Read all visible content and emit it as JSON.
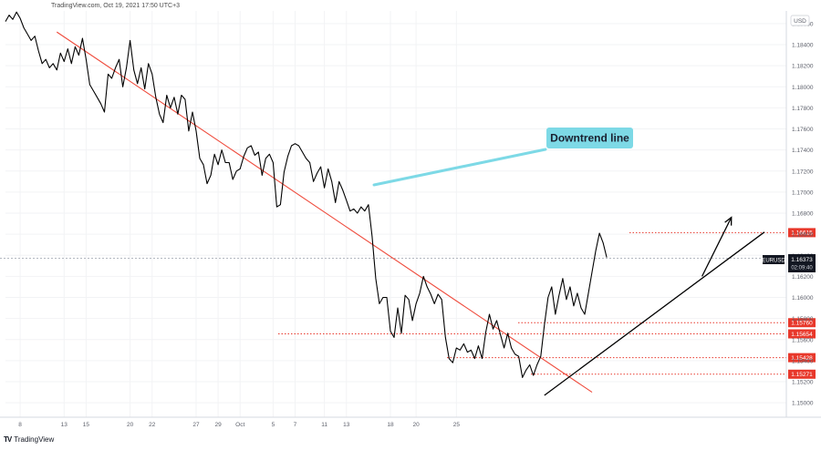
{
  "header": {
    "credit": "TradingView.com, Oct 19, 2021 17:50 UTC+3"
  },
  "footer": {
    "logo_mark": "TV",
    "logo_text": "TradingView"
  },
  "axis": {
    "currency": "USD"
  },
  "annotation": {
    "label": "Downtrend line",
    "label_bg": "#7dd9e6"
  },
  "colors": {
    "price": "#000000",
    "downtrend": "#ef4b3c",
    "level_line": "#e83a2e",
    "level_tag": "#e8382b",
    "current_tag": "#131722",
    "grid": "#f2f3f5"
  },
  "chart_data": {
    "type": "line",
    "symbol": "EURUSD",
    "ylim": [
      1.1488,
      1.1872
    ],
    "y_ticks": [
      "1.18600",
      "1.18400",
      "1.18200",
      "1.18000",
      "1.17800",
      "1.17600",
      "1.17400",
      "1.17200",
      "1.17000",
      "1.16800",
      "1.16600",
      "1.16400",
      "1.16200",
      "1.16000",
      "1.15800",
      "1.15600",
      "1.15400",
      "1.15200",
      "1.15000"
    ],
    "x_ticks": [
      "8",
      "13",
      "15",
      "20",
      "22",
      "27",
      "29",
      "Oct",
      "5",
      "7",
      "11",
      "13",
      "18",
      "20",
      "25"
    ],
    "x_tick_index": [
      4,
      16,
      22,
      34,
      40,
      52,
      58,
      64,
      73,
      79,
      87,
      93,
      105,
      112,
      123
    ],
    "price_series": [
      1.1862,
      1.1868,
      1.1864,
      1.1871,
      1.1865,
      1.1856,
      1.185,
      1.1844,
      1.1848,
      1.1834,
      1.1822,
      1.1826,
      1.1818,
      1.1822,
      1.1816,
      1.1832,
      1.1824,
      1.1836,
      1.1822,
      1.1838,
      1.183,
      1.1846,
      1.1826,
      1.1802,
      1.1796,
      1.179,
      1.1784,
      1.1776,
      1.1812,
      1.1808,
      1.1818,
      1.1826,
      1.18,
      1.1818,
      1.1844,
      1.1816,
      1.1803,
      1.1818,
      1.1798,
      1.1822,
      1.1812,
      1.179,
      1.1774,
      1.1766,
      1.1792,
      1.178,
      1.179,
      1.1774,
      1.1792,
      1.1788,
      1.1758,
      1.1776,
      1.1758,
      1.1732,
      1.1726,
      1.1708,
      1.1716,
      1.1736,
      1.1726,
      1.174,
      1.1728,
      1.1728,
      1.1712,
      1.172,
      1.1722,
      1.1734,
      1.1742,
      1.1744,
      1.1735,
      1.1738,
      1.1716,
      1.1732,
      1.1736,
      1.1728,
      1.1686,
      1.1688,
      1.1719,
      1.1734,
      1.1744,
      1.1746,
      1.1744,
      1.1738,
      1.1732,
      1.1728,
      1.171,
      1.1718,
      1.1724,
      1.1704,
      1.1722,
      1.171,
      1.169,
      1.171,
      1.1702,
      1.1692,
      1.1682,
      1.1684,
      1.168,
      1.1686,
      1.1682,
      1.1688,
      1.1658,
      1.1618,
      1.1594,
      1.16,
      1.16,
      1.1568,
      1.1562,
      1.159,
      1.1566,
      1.1602,
      1.1598,
      1.1578,
      1.1594,
      1.1604,
      1.162,
      1.161,
      1.1603,
      1.1594,
      1.1603,
      1.1598,
      1.1562,
      1.1542,
      1.1538,
      1.1552,
      1.155,
      1.1556,
      1.1548,
      1.155,
      1.1542,
      1.1554,
      1.1542,
      1.1567,
      1.1584,
      1.157,
      1.1578,
      1.1565,
      1.1552,
      1.1566,
      1.1552,
      1.1546,
      1.1544,
      1.1524,
      1.1531,
      1.1536,
      1.1526,
      1.1536,
      1.1544,
      1.1574,
      1.16,
      1.161,
      1.1584,
      1.1602,
      1.1618,
      1.1598,
      1.161,
      1.1592,
      1.1604,
      1.159,
      1.1584,
      1.1604,
      1.1624,
      1.1644,
      1.1661,
      1.1652,
      1.1638
    ],
    "downtrend_line": {
      "from_index": 14,
      "from_value": 1.1852,
      "to_index": 160,
      "to_value": 1.151
    },
    "uptrend_line": {
      "from_index": 147,
      "from_value": 1.1507,
      "to_index": 207,
      "to_value": 1.1662
    },
    "projection_arrow": {
      "from_index": 190,
      "from_value": 1.162,
      "to_index": 198,
      "to_value": 1.1676
    },
    "levels": [
      {
        "label": "1.16615",
        "value": 1.16615
      },
      {
        "label": "1.15760",
        "value": 1.1576
      },
      {
        "label": "1.15654",
        "value": 1.15654
      },
      {
        "label": "1.15428",
        "value": 1.15428
      },
      {
        "label": "1.15271",
        "value": 1.15271
      }
    ],
    "current": {
      "symbol": "EURUSD",
      "price": "1.16373",
      "value": 1.16373,
      "countdown": "02:09:40"
    }
  }
}
